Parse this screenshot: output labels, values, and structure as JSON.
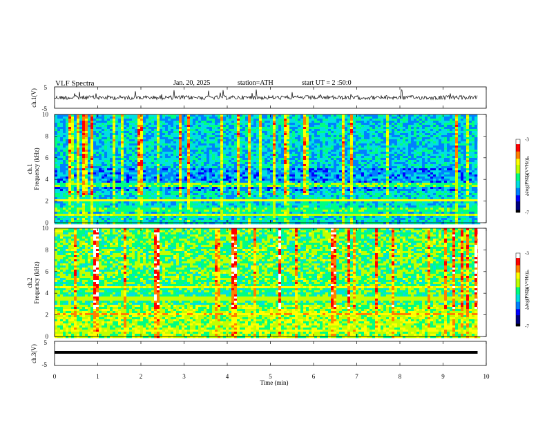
{
  "header": {
    "title": "VLF Spectra",
    "date": "Jan. 20, 2025",
    "station": "station=ATH",
    "start": "start UT = 2 :50:0"
  },
  "chart_data": [
    {
      "type": "line",
      "panel": "ch1-waveform",
      "ylabel": "ch.1(V)",
      "ylim": [
        -5,
        5
      ],
      "yticks": [
        "5",
        "-5"
      ],
      "values_summary": "noisy waveform centered near 0 V with occasional spikes"
    },
    {
      "type": "heatmap",
      "panel": "ch1-spectrogram",
      "ylabel_top": "ch.1",
      "ylabel": "Frequency (kHz)",
      "ylim": [
        0,
        10
      ],
      "yticks": [
        "0",
        "2",
        "4",
        "6",
        "8",
        "10"
      ],
      "colorbar": {
        "label": "log(PSD)(V²/Hz)",
        "range": [
          -7,
          -3
        ],
        "ticks": [
          "-3",
          "-4",
          "-5",
          "-6",
          "-7"
        ]
      },
      "bands_khz": [
        {
          "freq": 2.1,
          "level": -4.2
        },
        {
          "freq": 3.5,
          "level": -4.8
        },
        {
          "freq": 0.8,
          "level": -4.5
        },
        {
          "freq": 1.2,
          "level": -4.9
        }
      ]
    },
    {
      "type": "heatmap",
      "panel": "ch2-spectrogram",
      "ylabel_top": "ch.2",
      "ylabel": "Frequency (kHz)",
      "ylim": [
        0,
        10
      ],
      "yticks": [
        "0",
        "2",
        "4",
        "6",
        "8",
        "10"
      ],
      "colorbar": {
        "label": "log(PSD)(V²/Hz)",
        "range": [
          -7,
          -3
        ],
        "ticks": [
          "-3",
          "-4",
          "-5",
          "-6",
          "-7"
        ]
      },
      "bands_khz": [
        {
          "freq": 2.0,
          "level": -4.0
        },
        {
          "freq": 4.6,
          "level": -4.3
        },
        {
          "freq": 3.5,
          "level": -4.6
        },
        {
          "freq": 0.5,
          "level": -4.4
        }
      ]
    },
    {
      "type": "line",
      "panel": "ch3-waveform",
      "ylabel": "ch.3(V)",
      "ylim": [
        -5,
        5
      ],
      "yticks": [
        "5",
        "-5"
      ],
      "values_summary": "thick flat band near -1.5 V"
    }
  ],
  "xaxis": {
    "label": "Time (min)",
    "ticks": [
      "0",
      "1",
      "2",
      "3",
      "4",
      "5",
      "6",
      "7",
      "8",
      "9",
      "10"
    ],
    "range": [
      0,
      10
    ],
    "data_end": 9.8
  },
  "colors": {
    "cmap": [
      "#000000",
      "#00007f",
      "#0000ff",
      "#0080ff",
      "#00e0e0",
      "#00ff80",
      "#40ff40",
      "#c0ff00",
      "#ffff00",
      "#ff8000",
      "#ff0000",
      "#ffffff"
    ]
  }
}
